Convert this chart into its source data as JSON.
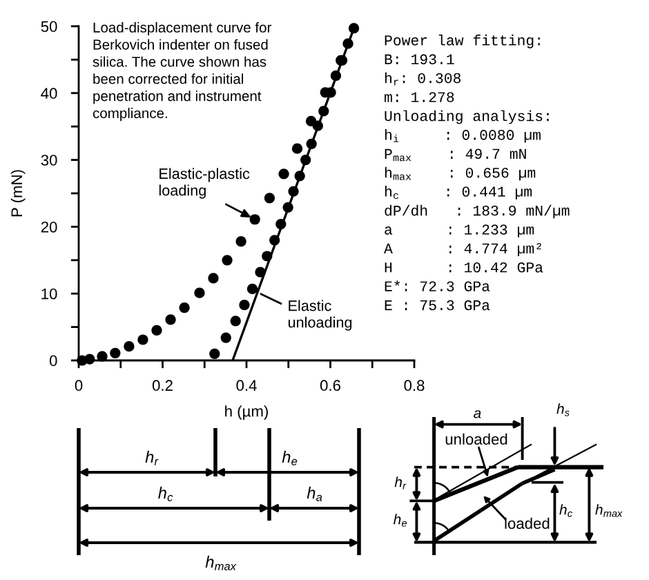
{
  "chart_data": {
    "type": "scatter",
    "xlabel": "h (µm)",
    "ylabel": "P (mN)",
    "marker": "circle",
    "xlim": [
      0,
      0.8
    ],
    "ylim": [
      0,
      50
    ],
    "xticks": [
      0,
      {
        "value": 0.1,
        "label": null
      },
      0.2,
      {
        "value": 0.3,
        "label": null
      },
      0.4,
      {
        "value": 0.5,
        "label": null
      },
      0.6,
      {
        "value": 0.7,
        "label": null
      },
      0.8
    ],
    "yticks": [
      0,
      {
        "value": 5,
        "label": null
      },
      10,
      {
        "value": 15,
        "label": null
      },
      20,
      {
        "value": 25,
        "label": null
      },
      30,
      {
        "value": 35,
        "label": null
      },
      40,
      {
        "value": 45,
        "label": null
      },
      50
    ],
    "series": [
      {
        "color": "#000000",
        "x": [
          0.008,
          0.026,
          0.056,
          0.087,
          0.12,
          0.153,
          0.186,
          0.219,
          0.252,
          0.288,
          0.321,
          0.354,
          0.387,
          0.42,
          0.455,
          0.489,
          0.521,
          0.554,
          0.588,
          0.625,
          0.656
        ],
        "values": [
          0,
          0.2,
          0.6,
          1.1,
          2.1,
          3.1,
          4.5,
          6.1,
          7.9,
          10.1,
          12.3,
          15.0,
          17.8,
          21.1,
          24.3,
          27.9,
          31.7,
          35.8,
          40.1,
          44.9,
          49.7
        ]
      },
      {
        "color": "#000000",
        "x": [
          0.324,
          0.351,
          0.374,
          0.395,
          0.414,
          0.433,
          0.449,
          0.467,
          0.482,
          0.499,
          0.512,
          0.527,
          0.541,
          0.555,
          0.57,
          0.584,
          0.601,
          0.613,
          0.628,
          0.642
        ],
        "values": [
          1.0,
          3.4,
          5.9,
          8.3,
          10.7,
          13.2,
          15.6,
          18.0,
          20.4,
          22.9,
          25.3,
          27.6,
          30.0,
          32.4,
          35.1,
          37.3,
          40.1,
          42.6,
          44.9,
          47.4
        ]
      },
      {
        "type": "line",
        "color": "#000000",
        "marker": "none",
        "x": [
          0.367,
          0.656
        ],
        "values": [
          0,
          49.7
        ]
      }
    ],
    "annotations": [
      "Load-displacement curve for\nBerkovich indenter on fused\nsilica. The curve shown has\nbeen corrected for initial\npenetration and instrument\ncompliance.",
      {
        "text": "Elastic-plastic\nloading",
        "x": 0.42,
        "y": 21.1
      },
      {
        "text": "Elastic\nunloading",
        "x": 0.426,
        "y": 10.2
      },
      "Power law fitting:",
      "B: 193.1",
      "h$_{r}$: 0.308",
      "m: 1.278",
      "Unloading analysis:",
      "h$_{i}$     : 0.0080 µm",
      "P$_{max}$    : 49.7 mN",
      "h$_{max}$    : 0.656 µm",
      "h$_{c}$     : 0.441 µm",
      "dP/dh   : 183.9 mN/µm",
      "a      : 1.233 µm",
      "A      : 4.774 µm²",
      "H      : 10.42 GPa",
      "E*: 72.3 GPa",
      "E : 75.3 GPa",
      "h$_{r}$",
      "h$_{e}$",
      "h$_{c}$",
      "h$_{a}$",
      "h$_{max}$",
      "a",
      "h$_{s}$",
      "unloaded",
      "loaded",
      "h$_{r}$",
      "h$_{e}$",
      "h$_{c}$",
      "h$_{max}$"
    ]
  }
}
